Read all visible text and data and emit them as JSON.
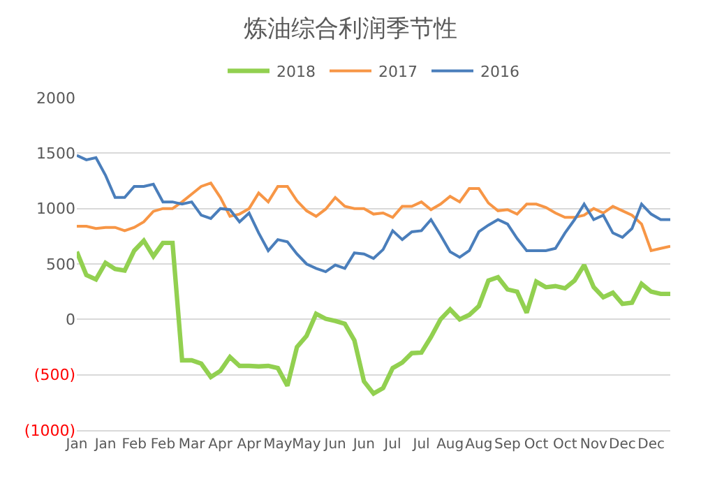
{
  "chart_data": {
    "type": "line",
    "title": "炼油综合利润季节性",
    "categories": [
      "Jan",
      null,
      null,
      "Jan",
      null,
      null,
      "Feb",
      null,
      null,
      "Feb",
      null,
      null,
      "Mar",
      null,
      null,
      "Apr",
      null,
      null,
      "Apr",
      null,
      null,
      "May",
      null,
      null,
      "May",
      null,
      null,
      "Jun",
      null,
      null,
      "Jun",
      null,
      null,
      "Jul",
      null,
      null,
      "Jul",
      null,
      null,
      "Aug",
      null,
      null,
      "Aug",
      null,
      null,
      "Sep",
      null,
      null,
      "Oct",
      null,
      null,
      "Oct",
      null,
      null,
      "Nov",
      null,
      null,
      "Dec",
      null,
      null,
      "Dec",
      null,
      null
    ],
    "ylim": [
      -1000,
      2000
    ],
    "yticks": [
      {
        "value": -1000,
        "label": "(1000)"
      },
      {
        "value": -500,
        "label": "(500)"
      },
      0,
      500,
      1000,
      1500,
      2000
    ],
    "grid": "y",
    "legend": "top",
    "series": [
      {
        "name": "2018",
        "color": "#92d050",
        "values": [
          610,
          400,
          360,
          510,
          455,
          440,
          620,
          710,
          570,
          690,
          690,
          -370,
          -370,
          -400,
          -520,
          -465,
          -340,
          -420,
          -420,
          -425,
          -420,
          -440,
          -600,
          -250,
          -150,
          50,
          5,
          -15,
          -40,
          -190,
          -560,
          -670,
          -620,
          -440,
          -390,
          -305,
          -300,
          -160,
          0,
          90,
          0,
          40,
          120,
          350,
          380,
          270,
          250,
          60,
          340,
          290,
          300,
          280,
          350,
          490,
          290,
          200,
          240,
          140,
          150,
          320,
          250,
          230,
          230
        ]
      },
      {
        "name": "2017",
        "color": "#f79646",
        "values": [
          840,
          840,
          820,
          830,
          830,
          800,
          830,
          880,
          975,
          1000,
          1000,
          1060,
          1130,
          1200,
          1230,
          1100,
          930,
          950,
          1000,
          1140,
          1060,
          1200,
          1200,
          1070,
          980,
          930,
          995,
          1100,
          1020,
          1000,
          1000,
          950,
          960,
          920,
          1020,
          1020,
          1060,
          990,
          1040,
          1110,
          1060,
          1180,
          1180,
          1050,
          980,
          990,
          950,
          1040,
          1040,
          1010,
          960,
          920,
          920,
          940,
          1000,
          960,
          1020,
          980,
          940,
          860,
          620,
          640,
          660
        ]
      },
      {
        "name": "2016",
        "color": "#4a7ebb",
        "values": [
          1480,
          1440,
          1460,
          1300,
          1100,
          1100,
          1200,
          1200,
          1220,
          1060,
          1060,
          1040,
          1060,
          940,
          910,
          1000,
          990,
          880,
          960,
          780,
          620,
          720,
          700,
          590,
          500,
          460,
          430,
          490,
          460,
          600,
          590,
          550,
          630,
          800,
          720,
          790,
          800,
          900,
          760,
          610,
          560,
          620,
          790,
          850,
          900,
          860,
          730,
          620,
          620,
          620,
          640,
          780,
          900,
          1040,
          900,
          940,
          780,
          740,
          820,
          1040,
          950,
          900,
          900
        ]
      }
    ]
  }
}
